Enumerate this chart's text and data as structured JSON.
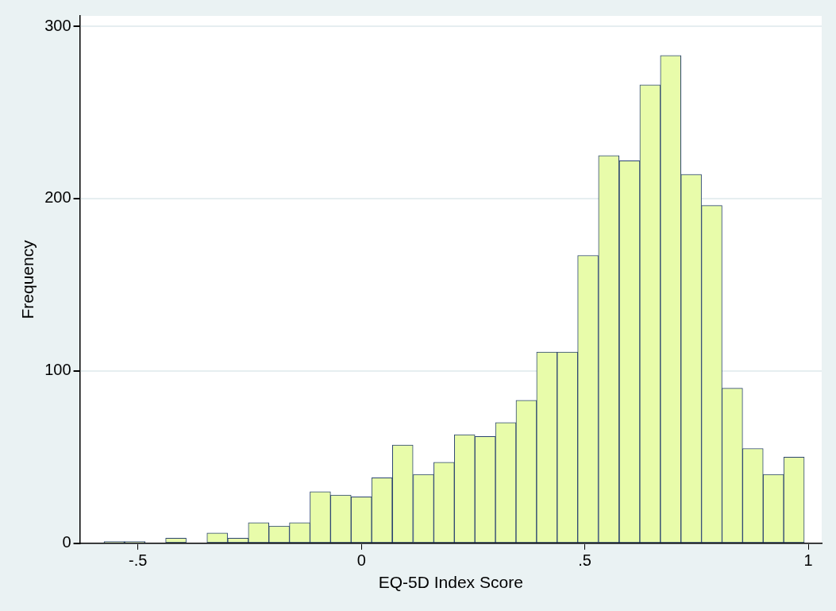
{
  "chart_data": {
    "type": "histogram",
    "xlabel": "EQ-5D Index Score",
    "ylabel": "Frequency",
    "bins": [
      -0.576,
      -0.53,
      -0.484,
      -0.438,
      -0.392,
      -0.346,
      -0.299,
      -0.253,
      -0.207,
      -0.161,
      -0.115,
      -0.069,
      -0.023,
      0.023,
      0.069,
      0.116,
      0.162,
      0.208,
      0.254,
      0.3,
      0.346,
      0.392,
      0.438,
      0.484,
      0.53,
      0.577,
      0.623,
      0.669,
      0.715,
      0.761,
      0.807,
      0.853,
      0.899,
      0.945,
      0.991
    ],
    "values": [
      1,
      1,
      0,
      3,
      0,
      6,
      3,
      12,
      10,
      12,
      30,
      28,
      27,
      38,
      57,
      40,
      47,
      63,
      62,
      70,
      83,
      111,
      111,
      167,
      225,
      222,
      266,
      283,
      214,
      196,
      90,
      55,
      40,
      50
    ],
    "color": "#e8fcaa",
    "xlim": [
      -0.63,
      1.03
    ],
    "xticks": [
      {
        "value": -0.5,
        "label": "-.5"
      },
      0,
      {
        "value": 0.5,
        "label": ".5"
      },
      1
    ],
    "ylim": [
      0,
      306
    ],
    "yticks": [
      0,
      100,
      200,
      300
    ],
    "grid": "y"
  }
}
